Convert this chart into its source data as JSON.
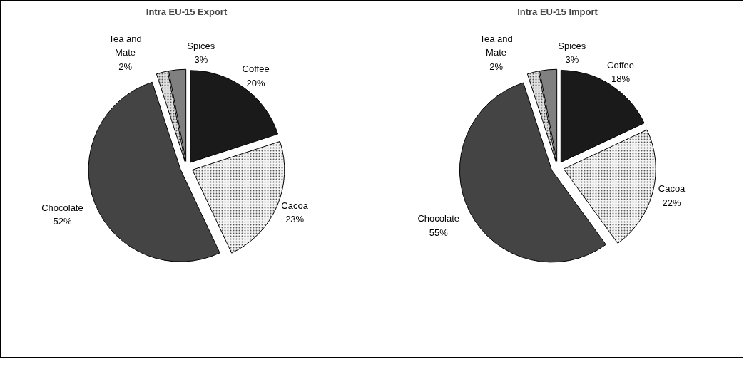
{
  "chart_data": [
    {
      "type": "pie",
      "title": "Intra EU-15 Export",
      "categories": [
        "Coffee",
        "Cacoa",
        "Chocolate",
        "Tea and Mate",
        "Spices"
      ],
      "values": [
        20,
        23,
        52,
        2,
        3
      ],
      "value_labels": [
        "20%",
        "23%",
        "52%",
        "2%",
        "3%"
      ],
      "colors": [
        "#1a1a1a",
        "#f4f4f4",
        "#444444",
        "#e0e0e0",
        "#808080"
      ]
    },
    {
      "type": "pie",
      "title": "Intra EU-15 Import",
      "categories": [
        "Coffee",
        "Cacoa",
        "Chocolate",
        "Tea and Mate",
        "Spices"
      ],
      "values": [
        18,
        22,
        55,
        2,
        3
      ],
      "value_labels": [
        "18%",
        "22%",
        "55%",
        "2%",
        "3%"
      ],
      "colors": [
        "#1a1a1a",
        "#f4f4f4",
        "#444444",
        "#e0e0e0",
        "#808080"
      ]
    }
  ]
}
